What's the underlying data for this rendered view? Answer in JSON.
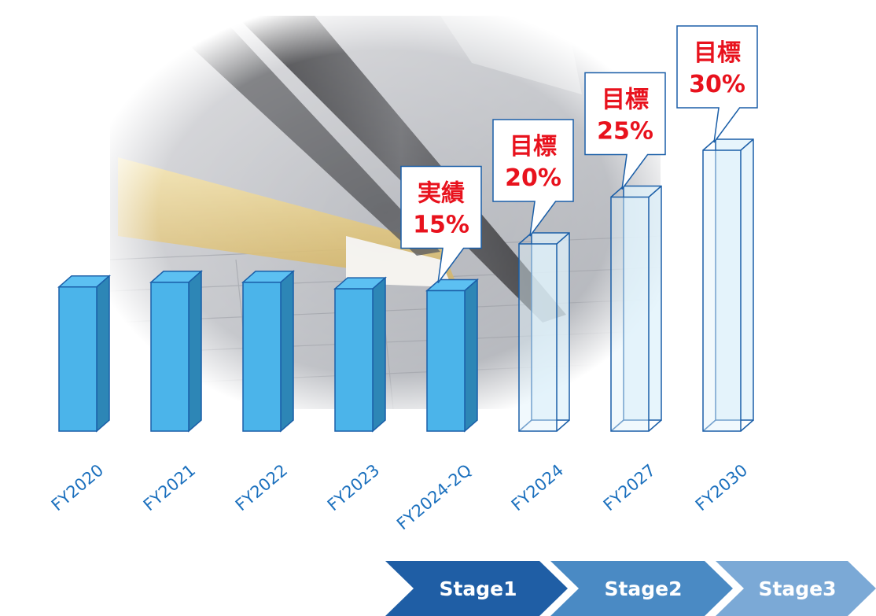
{
  "chart_data": {
    "type": "bar",
    "categories": [
      "FY2020",
      "FY2021",
      "FY2022",
      "FY2023",
      "FY2024-2Q",
      "FY2024",
      "FY2027",
      "FY2030"
    ],
    "values": [
      15.4,
      15.9,
      15.9,
      15.2,
      15,
      20,
      25,
      30
    ],
    "series": [
      {
        "values": [
          15.4,
          15.9,
          15.9,
          15.2,
          15,
          null,
          null,
          null
        ]
      },
      {
        "values": [
          null,
          null,
          null,
          null,
          null,
          20,
          25,
          30
        ]
      }
    ],
    "title": "",
    "xlabel": "",
    "ylabel": "",
    "ylim": [
      0,
      33
    ],
    "grid": false,
    "annotations": [
      {
        "category": "FY2024-2Q",
        "label": "実績",
        "value_text": "15%"
      },
      {
        "category": "FY2024",
        "label": "目標",
        "value_text": "20%"
      },
      {
        "category": "FY2027",
        "label": "目標",
        "value_text": "25%"
      },
      {
        "category": "FY2030",
        "label": "目標",
        "value_text": "30%"
      }
    ],
    "colors": {
      "actual_front": "#4bb4ea",
      "actual_side": "#2d86b6",
      "actual_top": "#5cc0f2",
      "target_fill": "#dff1fb",
      "outline": "#1b5fa8",
      "callout_text": "#e8121d",
      "tick_text": "#1a6fbd"
    }
  },
  "stages": [
    {
      "label": "Stage1",
      "color": "#1f5ea5"
    },
    {
      "label": "Stage2",
      "color": "#4a8ac4"
    },
    {
      "label": "Stage3",
      "color": "#7ba9d6"
    }
  ]
}
